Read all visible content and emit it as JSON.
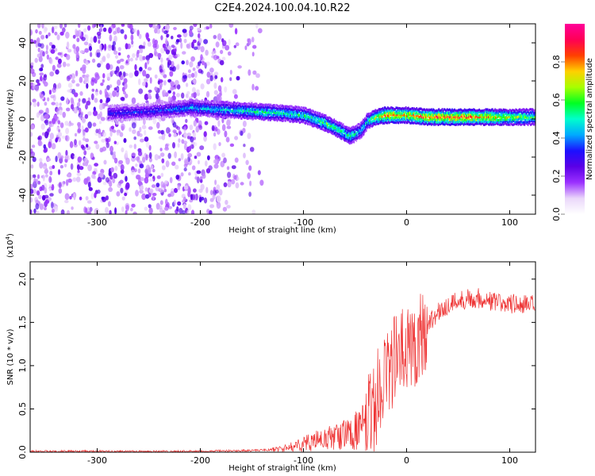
{
  "title": "C2E4.2024.100.04.10.R22",
  "chart_data": [
    {
      "type": "heatmap",
      "xlabel": "Height of straight line (km)",
      "ylabel": "Frequency (Hz)",
      "xlim": [
        -365,
        125
      ],
      "ylim": [
        -50,
        50
      ],
      "xticks": [
        -300,
        -200,
        -100,
        0,
        100
      ],
      "yticks": [
        -40,
        -20,
        0,
        20,
        40
      ],
      "colorbar": {
        "label": "Normalized spectral amplitude",
        "range": [
          0.0,
          1.0
        ],
        "ticks": [
          0.0,
          0.2,
          0.4,
          0.6,
          0.8
        ],
        "tick_labels": [
          "0.0",
          "0.2",
          "0.4",
          "0.6",
          "0.8"
        ],
        "colormap": [
          "#ffffff",
          "#ead7fa",
          "#9b30ff",
          "#5a00e6",
          "#1c10ff",
          "#00aaff",
          "#00ffcc",
          "#00ff22",
          "#a8ff00",
          "#ffd000",
          "#ff4000",
          "#ff0055",
          "#ff0099"
        ]
      },
      "ridge": {
        "x": [
          -290,
          -250,
          -210,
          -180,
          -150,
          -120,
          -100,
          -80,
          -65,
          -55,
          -45,
          -38,
          -30,
          -20,
          -10,
          0,
          20,
          50,
          80,
          100,
          125
        ],
        "freq": [
          3,
          4,
          6,
          5,
          4,
          3,
          2,
          -2,
          -6,
          -9,
          -6,
          -1,
          1,
          2,
          2,
          2,
          1,
          1,
          1,
          1,
          1
        ],
        "amplitude": [
          0.35,
          0.35,
          0.45,
          0.5,
          0.55,
          0.55,
          0.55,
          0.6,
          0.6,
          0.55,
          0.5,
          0.55,
          0.7,
          0.85,
          0.85,
          0.8,
          0.85,
          0.9,
          0.8,
          0.7,
          0.6
        ]
      },
      "noise_region_x": [
        -365,
        -140
      ]
    },
    {
      "type": "line",
      "xlabel": "Height of straight line (km)",
      "ylabel": "SNR (10 * v/v)",
      "scale_label": "(x10",
      "scale_exponent": "4",
      "scale_suffix": ")",
      "xlim": [
        -365,
        125
      ],
      "ylim": [
        0,
        2.2
      ],
      "xticks": [
        -300,
        -200,
        -100,
        0,
        100
      ],
      "yticks": [
        0.0,
        0.5,
        1.0,
        1.5,
        2.0
      ],
      "ytick_labels": [
        "0.0",
        "0.5",
        "1.0",
        "1.5",
        "2.0"
      ],
      "color": "#ee3333",
      "series": [
        {
          "x": [
            -365,
            -300,
            -200,
            -150,
            -130,
            -115,
            -100,
            -80,
            -60,
            -50,
            -40,
            -30,
            -25,
            -20,
            -15,
            -10,
            0,
            10,
            20,
            25,
            30,
            40,
            50,
            60,
            70,
            80,
            90,
            100,
            110,
            125
          ],
          "values": [
            0.01,
            0.01,
            0.01,
            0.02,
            0.03,
            0.05,
            0.1,
            0.15,
            0.2,
            0.25,
            0.3,
            0.55,
            0.8,
            0.95,
            1.0,
            1.1,
            1.15,
            1.3,
            1.45,
            1.55,
            1.6,
            1.7,
            1.75,
            1.78,
            1.78,
            1.75,
            1.72,
            1.72,
            1.7,
            1.7
          ]
        }
      ]
    }
  ]
}
